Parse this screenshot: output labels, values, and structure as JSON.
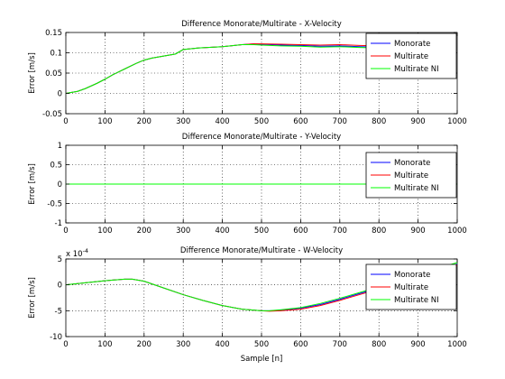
{
  "chart_data": [
    {
      "type": "line",
      "title": "Difference Monorate/Multirate - X-Velocity",
      "ylabel": "Error [m/s]",
      "xlabel": "",
      "xlim": [
        0,
        1000
      ],
      "ylim": [
        -0.05,
        0.15
      ],
      "x_ticks": [
        0,
        100,
        200,
        300,
        400,
        500,
        600,
        700,
        800,
        900,
        1000
      ],
      "y_ticks": [
        -0.05,
        0,
        0.05,
        0.1,
        0.15
      ],
      "y_tick_labels": [
        "-0.05",
        "0",
        "0.05",
        "0.1",
        "0.15"
      ],
      "exponent_label": "",
      "grid": true,
      "legend_position": "top-right",
      "x": [
        0,
        30,
        50,
        80,
        100,
        120,
        150,
        180,
        200,
        220,
        250,
        280,
        300,
        340,
        400,
        450,
        480,
        500,
        550,
        600,
        650,
        700,
        750,
        800,
        850,
        900
      ],
      "series": [
        {
          "name": "Monorate",
          "color": "#0000ff",
          "values": [
            0,
            0.005,
            0.012,
            0.025,
            0.035,
            0.046,
            0.06,
            0.074,
            0.082,
            0.087,
            0.092,
            0.097,
            0.108,
            0.112,
            0.115,
            0.12,
            0.122,
            0.121,
            0.119,
            0.118,
            0.116,
            0.117,
            0.115,
            0.114,
            0.111,
            0.11
          ]
        },
        {
          "name": "Multirate",
          "color": "#ff0000",
          "values": [
            0,
            0.005,
            0.012,
            0.025,
            0.035,
            0.046,
            0.06,
            0.074,
            0.082,
            0.087,
            0.092,
            0.097,
            0.108,
            0.112,
            0.115,
            0.12,
            0.122,
            0.122,
            0.121,
            0.12,
            0.119,
            0.12,
            0.118,
            0.117,
            0.114,
            0.112
          ]
        },
        {
          "name": "Multirate NI",
          "color": "#00ff00",
          "values": [
            0,
            0.005,
            0.012,
            0.025,
            0.035,
            0.046,
            0.06,
            0.074,
            0.082,
            0.087,
            0.092,
            0.097,
            0.108,
            0.112,
            0.115,
            0.12,
            0.12,
            0.119,
            0.117,
            0.116,
            0.114,
            0.115,
            0.113,
            0.112,
            0.109,
            0.108
          ]
        }
      ]
    },
    {
      "type": "line",
      "title": "Difference Monorate/Multirate - Y-Velocity",
      "ylabel": "Error [m/s]",
      "xlabel": "",
      "xlim": [
        0,
        1000
      ],
      "ylim": [
        -1,
        1
      ],
      "x_ticks": [
        0,
        100,
        200,
        300,
        400,
        500,
        600,
        700,
        800,
        900,
        1000
      ],
      "y_ticks": [
        -1,
        -0.5,
        0,
        0.5,
        1
      ],
      "y_tick_labels": [
        "-1",
        "-0.5",
        "0",
        "0.5",
        "1"
      ],
      "exponent_label": "",
      "grid": true,
      "legend_position": "top-right",
      "x": [
        0,
        1000
      ],
      "series": [
        {
          "name": "Monorate",
          "color": "#0000ff",
          "values": [
            0,
            0
          ]
        },
        {
          "name": "Multirate",
          "color": "#ff0000",
          "values": [
            0,
            0
          ]
        },
        {
          "name": "Multirate NI",
          "color": "#00ff00",
          "values": [
            0,
            0
          ]
        }
      ]
    },
    {
      "type": "line",
      "title": "Difference Monorate/Multirate - W-Velocity",
      "ylabel": "Error [m/s]",
      "xlabel": "Sample [n]",
      "xlim": [
        0,
        1000
      ],
      "ylim": [
        -10,
        5
      ],
      "x_ticks": [
        0,
        100,
        200,
        300,
        400,
        500,
        600,
        700,
        800,
        900,
        1000
      ],
      "y_ticks": [
        -10,
        -5,
        0,
        5
      ],
      "y_tick_labels": [
        "-10",
        "-5",
        "0",
        "5"
      ],
      "exponent_label": "x 10",
      "exponent_power": "-4",
      "grid": true,
      "legend_position": "top-right",
      "x": [
        0,
        50,
        100,
        150,
        170,
        200,
        250,
        300,
        350,
        400,
        450,
        500,
        520,
        550,
        600,
        650,
        700,
        750,
        800,
        850,
        900,
        950,
        1000
      ],
      "series": [
        {
          "name": "Monorate",
          "color": "#0000ff",
          "values": [
            0,
            0.4,
            0.8,
            1.1,
            1.1,
            0.7,
            -0.6,
            -1.9,
            -3.0,
            -4.0,
            -4.7,
            -5.0,
            -5.0,
            -4.9,
            -4.5,
            -3.8,
            -2.8,
            -1.7,
            -0.6,
            0.6,
            1.8,
            3.0,
            4.0
          ]
        },
        {
          "name": "Multirate",
          "color": "#ff0000",
          "values": [
            0,
            0.4,
            0.8,
            1.1,
            1.1,
            0.7,
            -0.6,
            -1.9,
            -3.0,
            -4.0,
            -4.7,
            -5.0,
            -5.1,
            -5.0,
            -4.7,
            -4.0,
            -3.0,
            -1.9,
            -0.8,
            0.4,
            1.6,
            2.8,
            3.7
          ]
        },
        {
          "name": "Multirate NI",
          "color": "#00ff00",
          "values": [
            0,
            0.4,
            0.8,
            1.1,
            1.1,
            0.7,
            -0.6,
            -1.9,
            -3.0,
            -4.0,
            -4.7,
            -5.0,
            -5.0,
            -4.8,
            -4.4,
            -3.6,
            -2.6,
            -1.5,
            -0.4,
            0.8,
            2.0,
            3.2,
            4.3
          ]
        }
      ]
    }
  ]
}
